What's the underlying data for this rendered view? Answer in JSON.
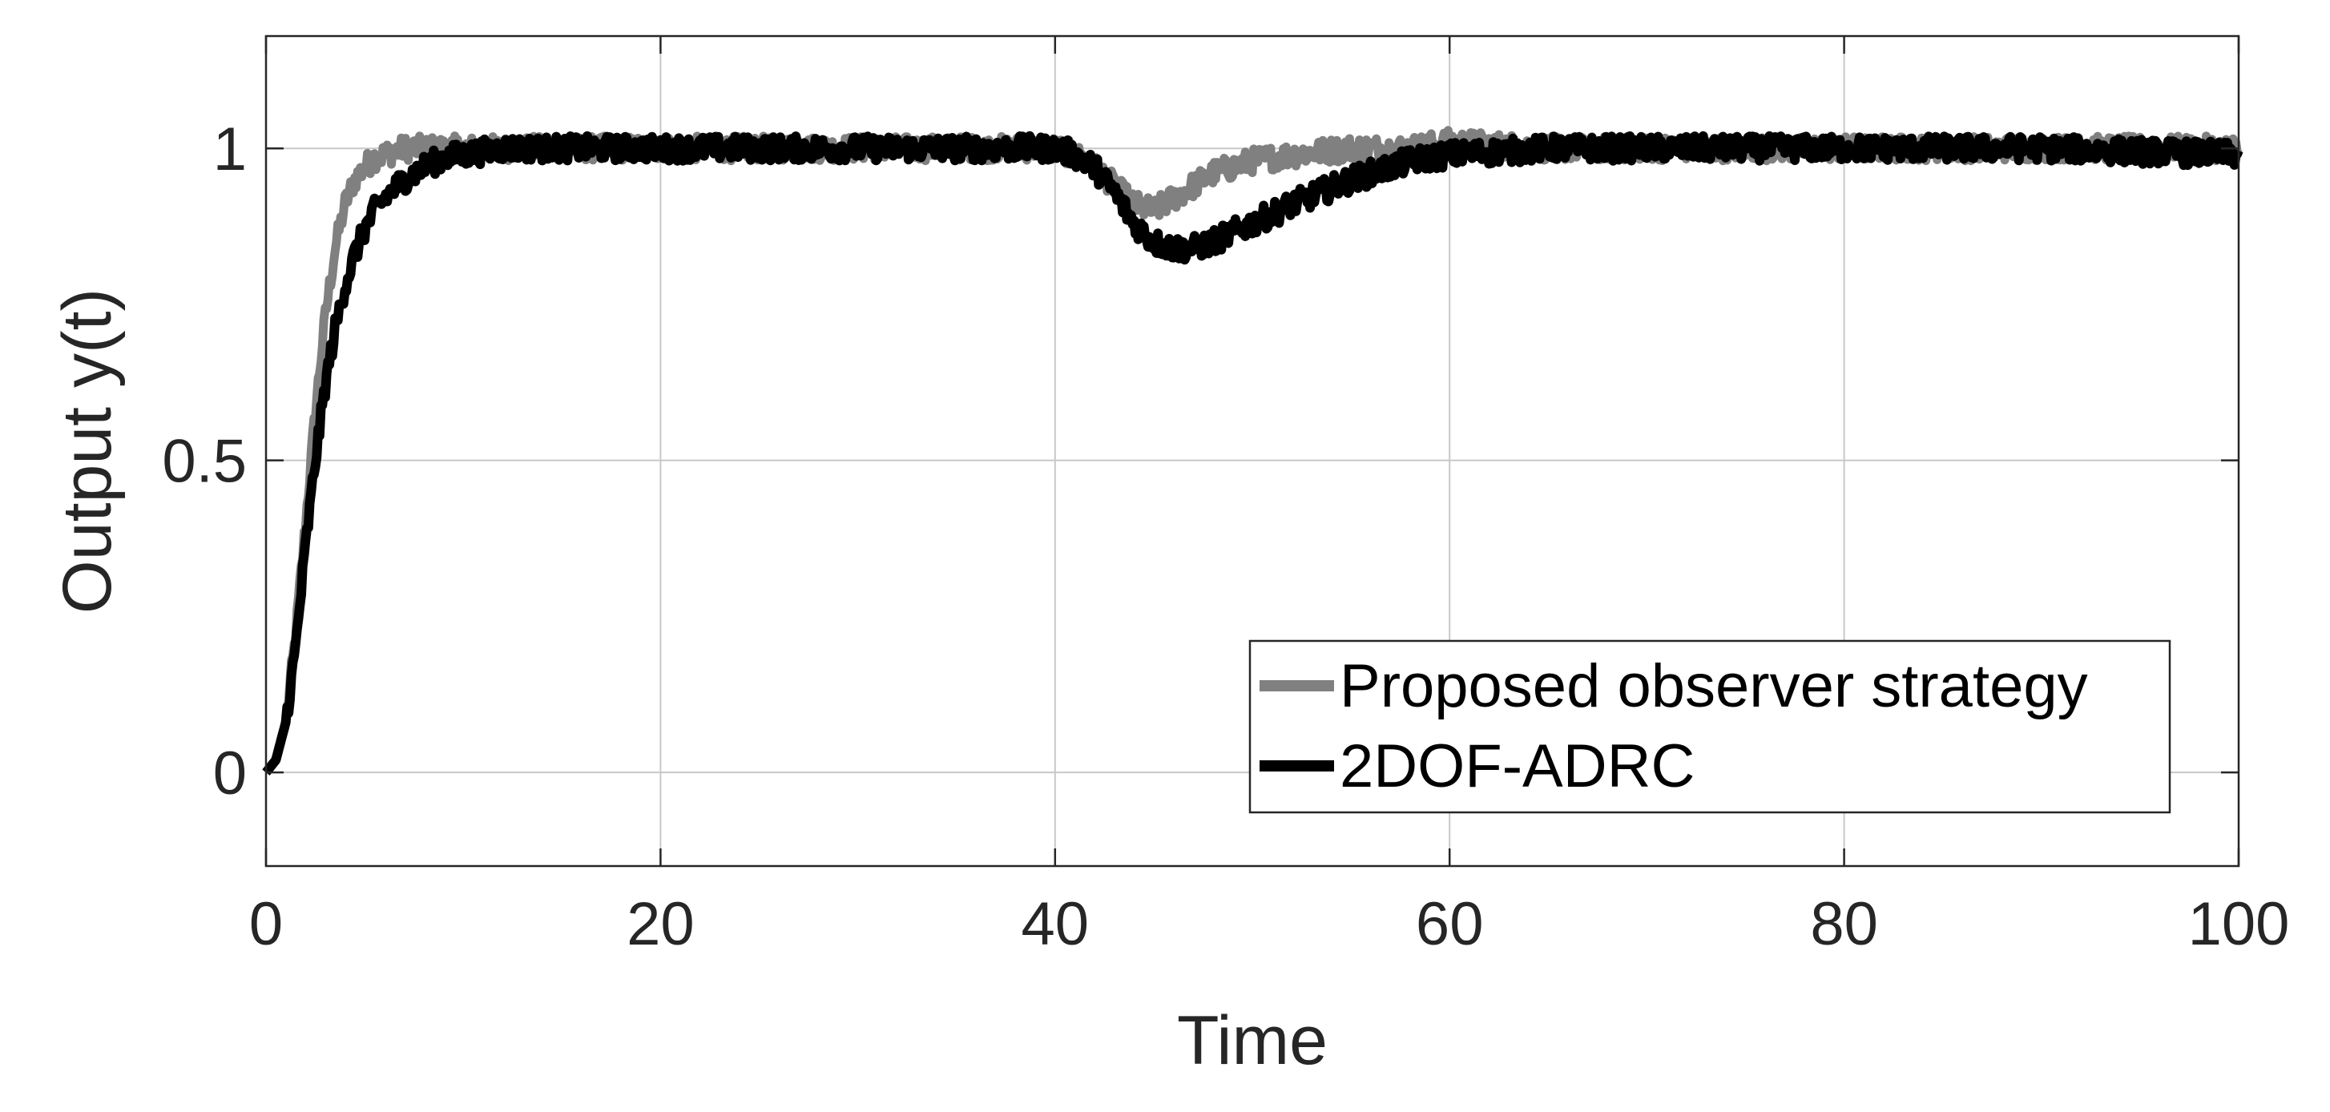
{
  "chart_data": {
    "type": "line",
    "title": "",
    "xlabel": "Time",
    "ylabel": "Output y(t)",
    "xlim": [
      0,
      100
    ],
    "ylim": [
      -0.15,
      1.18
    ],
    "xticks": [
      0,
      20,
      40,
      60,
      80,
      100
    ],
    "xtick_labels": [
      "0",
      "20",
      "40",
      "60",
      "80",
      "100"
    ],
    "yticks": [
      0,
      0.5,
      1
    ],
    "ytick_labels": [
      "0",
      "0.5",
      "1"
    ],
    "grid": true,
    "legend_position": "bottom-right",
    "noise_amplitude": 0.02,
    "series": [
      {
        "name": "Proposed observer strategy",
        "color": "#808080",
        "x": [
          0,
          0.5,
          1,
          1.5,
          2,
          2.5,
          3,
          3.5,
          4,
          4.5,
          5,
          5.5,
          6,
          7,
          8,
          9,
          10,
          12,
          15,
          20,
          25,
          30,
          35,
          40,
          41,
          42,
          43,
          44,
          45,
          46,
          47,
          48,
          50,
          52,
          55,
          58,
          60,
          65,
          70,
          80,
          90,
          100
        ],
        "y": [
          0,
          0.02,
          0.08,
          0.22,
          0.4,
          0.58,
          0.73,
          0.84,
          0.91,
          0.95,
          0.97,
          0.985,
          0.99,
          1.0,
          1.0,
          1.0,
          1.0,
          1.0,
          1.0,
          1.0,
          1.0,
          1.0,
          1.0,
          1.0,
          0.99,
          0.97,
          0.94,
          0.91,
          0.9,
          0.92,
          0.94,
          0.96,
          0.98,
          0.99,
          1.0,
          1.0,
          1.01,
          1.0,
          1.0,
          1.0,
          1.0,
          1.0
        ]
      },
      {
        "name": "2DOF-ADRC",
        "color": "#000000",
        "x": [
          0,
          0.5,
          1,
          1.5,
          2,
          2.5,
          3,
          3.5,
          4,
          4.5,
          5,
          5.5,
          6,
          7,
          8,
          9,
          10,
          12,
          15,
          20,
          25,
          30,
          35,
          40,
          41,
          42,
          43,
          44,
          45,
          46,
          47,
          48,
          50,
          52,
          55,
          58,
          60,
          65,
          70,
          80,
          90,
          100
        ],
        "y": [
          0,
          0.02,
          0.08,
          0.2,
          0.36,
          0.5,
          0.62,
          0.71,
          0.78,
          0.83,
          0.87,
          0.9,
          0.92,
          0.95,
          0.97,
          0.985,
          0.99,
          1.0,
          1.0,
          1.0,
          1.0,
          1.0,
          1.0,
          1.0,
          0.99,
          0.97,
          0.93,
          0.88,
          0.85,
          0.84,
          0.84,
          0.85,
          0.88,
          0.91,
          0.95,
          0.98,
          0.99,
          1.0,
          1.0,
          1.0,
          1.0,
          0.99
        ]
      }
    ]
  }
}
